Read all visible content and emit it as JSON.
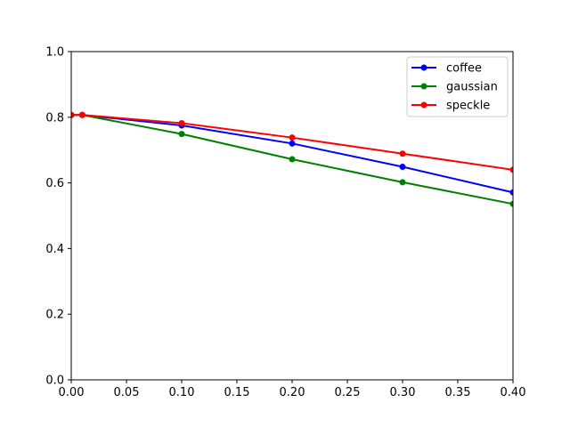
{
  "chart_data": {
    "type": "line",
    "x": [
      0.0,
      0.01,
      0.1,
      0.2,
      0.3,
      0.4
    ],
    "series": [
      {
        "name": "coffee",
        "color": "#0000ff",
        "values": [
          0.807,
          0.807,
          0.775,
          0.72,
          0.649,
          0.571
        ]
      },
      {
        "name": "gaussian",
        "color": "#008000",
        "values": [
          0.807,
          0.807,
          0.749,
          0.672,
          0.602,
          0.536
        ]
      },
      {
        "name": "speckle",
        "color": "#ff0000",
        "values": [
          0.807,
          0.807,
          0.782,
          0.738,
          0.689,
          0.64
        ]
      }
    ],
    "xlim": [
      0.0,
      0.4
    ],
    "ylim": [
      0.0,
      1.0
    ],
    "xticks": [
      "0.00",
      "0.05",
      "0.10",
      "0.15",
      "0.20",
      "0.25",
      "0.30",
      "0.35",
      "0.40"
    ],
    "yticks": [
      "0.0",
      "0.2",
      "0.4",
      "0.6",
      "0.8",
      "1.0"
    ],
    "grid": false,
    "legend_position": "top-right",
    "title": "",
    "xlabel": "",
    "ylabel": ""
  }
}
